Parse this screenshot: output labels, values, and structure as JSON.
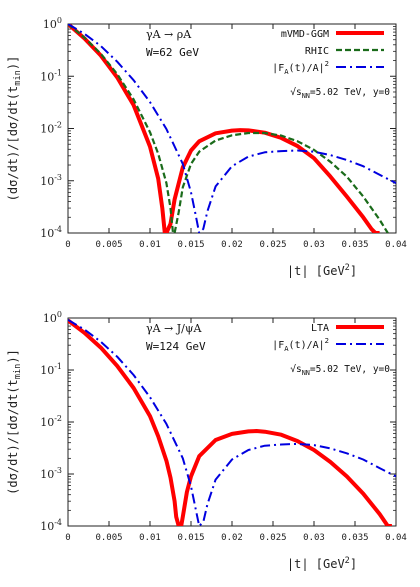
{
  "chart_data": [
    {
      "type": "line",
      "ylabel": "(dσ/dt)/[dσ/dt(t_min)]",
      "xlabel": "|t| [GeV^2]",
      "xlim": [
        0,
        0.04
      ],
      "ylim": [
        0.0001,
        1
      ],
      "yscale": "log",
      "x_ticks": [
        "0",
        "0.005",
        "0.01",
        "0.015",
        "0.02",
        "0.025",
        "0.03",
        "0.035",
        "0.04"
      ],
      "y_ticks": [
        {
          "base": "10",
          "exp": "0"
        },
        {
          "base": "10",
          "exp": "-1"
        },
        {
          "base": "10",
          "exp": "-2"
        },
        {
          "base": "10",
          "exp": "-3"
        },
        {
          "base": "10",
          "exp": "-4"
        }
      ],
      "annotations": {
        "process": "γA → ρA",
        "energy": "W=62 GeV",
        "conditions": "√s_NN=5.02 TeV, y=0"
      },
      "legend_position": "top-right",
      "series": [
        {
          "name": "mVMD-GGM",
          "color": "#ff0000",
          "style": "solid",
          "x": [
            0,
            0.002,
            0.004,
            0.006,
            0.008,
            0.01,
            0.011,
            0.0115,
            0.0118,
            0.012,
            0.0125,
            0.013,
            0.014,
            0.015,
            0.016,
            0.018,
            0.02,
            0.021,
            0.022,
            0.024,
            0.026,
            0.028,
            0.03,
            0.032,
            0.034,
            0.036,
            0.037,
            0.0375,
            0.038
          ],
          "y": [
            1,
            0.53,
            0.25,
            0.095,
            0.028,
            0.0045,
            0.0011,
            0.0003,
            0.0001,
            0.0001,
            0.00015,
            0.00044,
            0.0018,
            0.0038,
            0.0057,
            0.0081,
            0.0091,
            0.0093,
            0.0092,
            0.0083,
            0.0066,
            0.0046,
            0.0027,
            0.0012,
            0.0005,
            0.0002,
            0.00012,
            0.0001,
            0.0001
          ]
        },
        {
          "name": "RHIC",
          "color": "#1a6b1a",
          "style": "dashed",
          "x": [
            0,
            0.002,
            0.004,
            0.006,
            0.008,
            0.01,
            0.011,
            0.012,
            0.0125,
            0.0128,
            0.013,
            0.0135,
            0.014,
            0.015,
            0.016,
            0.018,
            0.02,
            0.022,
            0.024,
            0.026,
            0.028,
            0.03,
            0.032,
            0.034,
            0.036,
            0.038,
            0.039
          ],
          "y": [
            1,
            0.55,
            0.27,
            0.11,
            0.036,
            0.0085,
            0.0033,
            0.0009,
            0.0003,
            0.0001,
            0.0001,
            0.00025,
            0.00075,
            0.0021,
            0.0036,
            0.0059,
            0.0074,
            0.0082,
            0.0082,
            0.0073,
            0.0057,
            0.0039,
            0.0023,
            0.0012,
            0.0005,
            0.00018,
            0.0001
          ]
        },
        {
          "name": "|F_A(t)/A|^2",
          "color": "#0000e0",
          "style": "dashdot",
          "x": [
            0,
            0.002,
            0.004,
            0.006,
            0.008,
            0.01,
            0.012,
            0.014,
            0.015,
            0.0155,
            0.016,
            0.0165,
            0.017,
            0.018,
            0.02,
            0.022,
            0.024,
            0.026,
            0.028,
            0.03,
            0.032,
            0.034,
            0.036,
            0.038,
            0.04
          ],
          "y": [
            1,
            0.65,
            0.38,
            0.19,
            0.084,
            0.032,
            0.0098,
            0.0021,
            0.0006,
            0.00025,
            0.0001,
            0.00012,
            0.00026,
            0.00078,
            0.0019,
            0.0029,
            0.0035,
            0.0037,
            0.0038,
            0.0036,
            0.0031,
            0.0025,
            0.0019,
            0.0013,
            0.0009
          ]
        }
      ]
    },
    {
      "type": "line",
      "ylabel": "(dσ/dt)/[dσ/dt(t_min)]",
      "xlabel": "|t| [GeV^2]",
      "xlim": [
        0,
        0.04
      ],
      "ylim": [
        0.0001,
        1
      ],
      "yscale": "log",
      "x_ticks": [
        "0",
        "0.005",
        "0.01",
        "0.015",
        "0.02",
        "0.025",
        "0.03",
        "0.035",
        "0.04"
      ],
      "y_ticks": [
        {
          "base": "10",
          "exp": "0"
        },
        {
          "base": "10",
          "exp": "-1"
        },
        {
          "base": "10",
          "exp": "-2"
        },
        {
          "base": "10",
          "exp": "-3"
        },
        {
          "base": "10",
          "exp": "-4"
        }
      ],
      "annotations": {
        "process": "γA → J/ψA",
        "energy": "W=124 GeV",
        "conditions": "√s_NN=5.02 TeV, y=0"
      },
      "legend_position": "top-right",
      "series": [
        {
          "name": "LTA",
          "color": "#ff0000",
          "style": "solid",
          "x": [
            0,
            0.002,
            0.004,
            0.006,
            0.008,
            0.01,
            0.011,
            0.012,
            0.0125,
            0.013,
            0.0132,
            0.0135,
            0.0138,
            0.014,
            0.0145,
            0.015,
            0.016,
            0.018,
            0.02,
            0.022,
            0.023,
            0.024,
            0.026,
            0.028,
            0.03,
            0.032,
            0.034,
            0.036,
            0.038,
            0.039,
            0.0395
          ],
          "y": [
            0.9,
            0.52,
            0.27,
            0.12,
            0.045,
            0.013,
            0.0053,
            0.0018,
            0.00085,
            0.0003,
            0.00015,
            0.0001,
            0.0001,
            0.00015,
            0.00045,
            0.0009,
            0.0022,
            0.0045,
            0.0059,
            0.0066,
            0.0067,
            0.0065,
            0.0057,
            0.0043,
            0.0029,
            0.0017,
            0.0009,
            0.00042,
            0.00017,
            0.0001,
            0.0001
          ]
        },
        {
          "name": "|F_A(t)/A|^2",
          "color": "#0000e0",
          "style": "dashdot",
          "x": [
            0,
            0.002,
            0.004,
            0.006,
            0.008,
            0.01,
            0.012,
            0.014,
            0.015,
            0.0155,
            0.016,
            0.0165,
            0.017,
            0.018,
            0.02,
            0.022,
            0.024,
            0.026,
            0.028,
            0.03,
            0.032,
            0.034,
            0.036,
            0.038,
            0.04
          ],
          "y": [
            0.92,
            0.6,
            0.35,
            0.18,
            0.08,
            0.03,
            0.0092,
            0.002,
            0.00058,
            0.00024,
            0.0001,
            0.00012,
            0.00026,
            0.00078,
            0.0019,
            0.0029,
            0.0035,
            0.0037,
            0.0038,
            0.0036,
            0.0031,
            0.0025,
            0.0019,
            0.0013,
            0.0009
          ]
        }
      ]
    }
  ]
}
